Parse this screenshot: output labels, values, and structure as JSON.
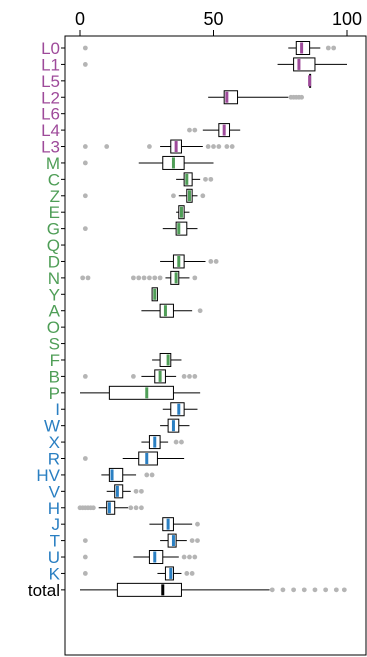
{
  "chart_data": {
    "type": "boxplot",
    "orientation": "horizontal",
    "xlim": [
      0,
      100
    ],
    "x_ticks": [
      "0",
      "50",
      "100"
    ],
    "x_tick_values": [
      0,
      50,
      100
    ],
    "group_colors": {
      "purple": "#9e4a9a",
      "green": "#4f9e57",
      "blue": "#2a7fc2",
      "black": "#000000"
    },
    "categories": [
      {
        "label": "L0",
        "group": "purple",
        "whislo": 78,
        "q1": 81,
        "med": 83,
        "q3": 86,
        "whishi": 90,
        "fliers": [
          2,
          93,
          95
        ]
      },
      {
        "label": "L1",
        "group": "purple",
        "whislo": 74,
        "q1": 80,
        "med": 82,
        "q3": 88,
        "whishi": 100,
        "fliers": [
          2
        ]
      },
      {
        "label": "L5",
        "group": "purple",
        "whislo": 86,
        "q1": 86,
        "med": 86,
        "q3": 86,
        "whishi": 86,
        "fliers": []
      },
      {
        "label": "L2",
        "group": "purple",
        "whislo": 48,
        "q1": 54,
        "med": 55,
        "q3": 59,
        "whishi": 78,
        "fliers": [
          79,
          80,
          81,
          82,
          83
        ]
      },
      {
        "label": "L6",
        "group": "purple",
        "whislo": null,
        "q1": null,
        "med": null,
        "q3": null,
        "whishi": null,
        "fliers": []
      },
      {
        "label": "L4",
        "group": "purple",
        "whislo": 46,
        "q1": 52,
        "med": 54,
        "q3": 56,
        "whishi": 60,
        "fliers": [
          41,
          43
        ]
      },
      {
        "label": "L3",
        "group": "purple",
        "whislo": 30,
        "q1": 34,
        "med": 36,
        "q3": 38,
        "whishi": 46,
        "fliers": [
          2,
          10,
          26,
          48,
          50,
          52,
          55,
          57
        ]
      },
      {
        "label": "M",
        "group": "green",
        "whislo": 22,
        "q1": 31,
        "med": 35,
        "q3": 39,
        "whishi": 50,
        "fliers": [
          2
        ]
      },
      {
        "label": "C",
        "group": "green",
        "whislo": 36,
        "q1": 39,
        "med": 40,
        "q3": 42,
        "whishi": 45,
        "fliers": [
          47,
          49
        ]
      },
      {
        "label": "Z",
        "group": "green",
        "whislo": 37,
        "q1": 40,
        "med": 41,
        "q3": 42,
        "whishi": 44,
        "fliers": [
          2,
          35,
          46
        ]
      },
      {
        "label": "E",
        "group": "green",
        "whislo": 36,
        "q1": 37,
        "med": 38,
        "q3": 39,
        "whishi": 41,
        "fliers": []
      },
      {
        "label": "G",
        "group": "green",
        "whislo": 31,
        "q1": 36,
        "med": 37,
        "q3": 40,
        "whishi": 44,
        "fliers": [
          2
        ]
      },
      {
        "label": "Q",
        "group": "green",
        "whislo": null,
        "q1": null,
        "med": null,
        "q3": null,
        "whishi": null,
        "fliers": []
      },
      {
        "label": "D",
        "group": "green",
        "whislo": 30,
        "q1": 35,
        "med": 37,
        "q3": 39,
        "whishi": 47,
        "fliers": [
          49,
          51
        ]
      },
      {
        "label": "N",
        "group": "green",
        "whislo": 32,
        "q1": 34,
        "med": 36,
        "q3": 37,
        "whishi": 41,
        "fliers": [
          1,
          3,
          20,
          22,
          24,
          26,
          28,
          30,
          43
        ]
      },
      {
        "label": "Y",
        "group": "green",
        "whislo": 27,
        "q1": 27,
        "med": 28,
        "q3": 29,
        "whishi": 29,
        "fliers": []
      },
      {
        "label": "A",
        "group": "green",
        "whislo": 23,
        "q1": 30,
        "med": 32,
        "q3": 35,
        "whishi": 42,
        "fliers": [
          45
        ]
      },
      {
        "label": "O",
        "group": "green",
        "whislo": null,
        "q1": null,
        "med": null,
        "q3": null,
        "whishi": null,
        "fliers": []
      },
      {
        "label": "S",
        "group": "green",
        "whislo": null,
        "q1": null,
        "med": null,
        "q3": null,
        "whishi": null,
        "fliers": []
      },
      {
        "label": "F",
        "group": "green",
        "whislo": 27,
        "q1": 30,
        "med": 33,
        "q3": 34,
        "whishi": 38,
        "fliers": []
      },
      {
        "label": "B",
        "group": "green",
        "whislo": 23,
        "q1": 28,
        "med": 30,
        "q3": 32,
        "whishi": 36,
        "fliers": [
          2,
          20,
          39,
          41,
          43
        ]
      },
      {
        "label": "P",
        "group": "green",
        "whislo": 0,
        "q1": 11,
        "med": 25,
        "q3": 35,
        "whishi": 45,
        "fliers": []
      },
      {
        "label": "I",
        "group": "blue",
        "whislo": 31,
        "q1": 34,
        "med": 37,
        "q3": 39,
        "whishi": 44,
        "fliers": []
      },
      {
        "label": "W",
        "group": "blue",
        "whislo": 30,
        "q1": 33,
        "med": 35,
        "q3": 37,
        "whishi": 41,
        "fliers": []
      },
      {
        "label": "X",
        "group": "blue",
        "whislo": 23,
        "q1": 26,
        "med": 28,
        "q3": 30,
        "whishi": 33,
        "fliers": [
          36,
          38
        ]
      },
      {
        "label": "R",
        "group": "blue",
        "whislo": 16,
        "q1": 22,
        "med": 25,
        "q3": 29,
        "whishi": 39,
        "fliers": [
          2
        ]
      },
      {
        "label": "HV",
        "group": "blue",
        "whislo": 8,
        "q1": 11,
        "med": 12,
        "q3": 16,
        "whishi": 21,
        "fliers": [
          25,
          27
        ]
      },
      {
        "label": "V",
        "group": "blue",
        "whislo": 10,
        "q1": 13,
        "med": 14,
        "q3": 16,
        "whishi": 19,
        "fliers": [
          21,
          23
        ]
      },
      {
        "label": "H",
        "group": "blue",
        "whislo": 7,
        "q1": 10,
        "med": 11,
        "q3": 13,
        "whishi": 18,
        "fliers": [
          0,
          1,
          2,
          3,
          4,
          5,
          19,
          21,
          23
        ]
      },
      {
        "label": "J",
        "group": "blue",
        "whislo": 26,
        "q1": 31,
        "med": 33,
        "q3": 35,
        "whishi": 42,
        "fliers": [
          44
        ]
      },
      {
        "label": "T",
        "group": "blue",
        "whislo": 30,
        "q1": 33,
        "med": 35,
        "q3": 36,
        "whishi": 40,
        "fliers": [
          2,
          42,
          44
        ]
      },
      {
        "label": "U",
        "group": "blue",
        "whislo": 20,
        "q1": 26,
        "med": 28,
        "q3": 31,
        "whishi": 37,
        "fliers": [
          2,
          39,
          41,
          43
        ]
      },
      {
        "label": "K",
        "group": "blue",
        "whislo": 29,
        "q1": 32,
        "med": 34,
        "q3": 35,
        "whishi": 38,
        "fliers": [
          2,
          40,
          42
        ]
      },
      {
        "label": "total",
        "group": "black",
        "whislo": 0,
        "q1": 14,
        "med": 31,
        "q3": 38,
        "whishi": 71,
        "fliers": [
          72,
          76,
          80,
          84,
          88,
          92,
          96,
          99
        ]
      }
    ]
  }
}
